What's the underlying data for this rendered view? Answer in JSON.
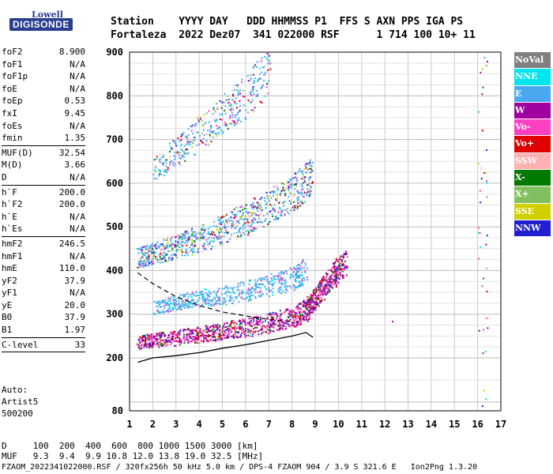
{
  "logo": {
    "top": "Lowell",
    "bottom": "DIGISONDE"
  },
  "header": {
    "line1": "Station    YYYY DAY   DDD HHMMSS P1  FFS S AXN PPS IGA PS",
    "line2": "Fortaleza  2022 Dez07  341 022000 RSF      1 714 100 10+ 11"
  },
  "params": {
    "group1": [
      {
        "label": "foF2",
        "value": "8.900"
      },
      {
        "label": "foF1",
        "value": "N/A"
      },
      {
        "label": "foF1p",
        "value": "N/A"
      },
      {
        "label": "foE",
        "value": "N/A"
      },
      {
        "label": "foEp",
        "value": "0.53"
      },
      {
        "label": "fxI",
        "value": "9.45"
      },
      {
        "label": "foEs",
        "value": "N/A"
      },
      {
        "label": "fmin",
        "value": "1.35"
      }
    ],
    "group2": [
      {
        "label": "MUF(D)",
        "value": "32.54"
      },
      {
        "label": "M(D)",
        "value": "3.66"
      },
      {
        "label": "D",
        "value": "N/A"
      }
    ],
    "group3": [
      {
        "label": "h`F",
        "value": "200.0"
      },
      {
        "label": "h`F2",
        "value": "200.0"
      },
      {
        "label": "h`E",
        "value": "N/A"
      },
      {
        "label": "h`Es",
        "value": "N/A"
      }
    ],
    "group4": [
      {
        "label": "hmF2",
        "value": "246.5"
      },
      {
        "label": "hmF1",
        "value": "N/A"
      },
      {
        "label": "hmE",
        "value": "110.0"
      },
      {
        "label": "yF2",
        "value": "37.9"
      },
      {
        "label": "yF1",
        "value": "N/A"
      },
      {
        "label": "yE",
        "value": "20.0"
      },
      {
        "label": "B0",
        "value": "37.9"
      },
      {
        "label": "B1",
        "value": "1.97"
      }
    ],
    "group5": [
      {
        "label": "C-level",
        "value": "33"
      }
    ]
  },
  "autoscaling": {
    "line1": "Auto:",
    "line2": "Artist5",
    "line3": "500200"
  },
  "footer": {
    "line1": "D     100  200  400  600  800 1000 1500 3000 [km]",
    "line2": "MUF   9.3  9.4  9.9 10.8 12.0 13.8 19.0 32.5 [MHz]",
    "line3": "FZAOM_2022341022000.RSF / 320fx256h 50 kHz 5.0 km / DPS-4 FZAOM 904 / 3.9 S 321.6 E   Ion2Png 1.3.20"
  },
  "legend": [
    {
      "label": "NoVal",
      "color": "#808080"
    },
    {
      "label": "NNE",
      "color": "#00e5ee"
    },
    {
      "label": "E",
      "color": "#4aa8f0"
    },
    {
      "label": "W",
      "color": "#a000a0"
    },
    {
      "label": "Vo-",
      "color": "#ff40c0"
    },
    {
      "label": "Vo+",
      "color": "#e00000"
    },
    {
      "label": "SSW",
      "color": "#ffb0b0"
    },
    {
      "label": "X-",
      "color": "#007a00"
    },
    {
      "label": "X+",
      "color": "#80c060"
    },
    {
      "label": "SSE",
      "color": "#d0d000"
    },
    {
      "label": "NNW",
      "color": "#2020d0"
    }
  ],
  "chart_data": {
    "type": "scatter",
    "title": "",
    "xlabel": "",
    "ylabel": "",
    "xlim": [
      1,
      17
    ],
    "ylim": [
      80,
      900
    ],
    "x_ticks": [
      1,
      2,
      3,
      4,
      5,
      6,
      7,
      8,
      9,
      10,
      11,
      12,
      13,
      14,
      15,
      16,
      17
    ],
    "y_ticks": [
      80,
      200,
      300,
      400,
      500,
      600,
      700,
      800,
      900
    ],
    "grid": true,
    "echo_traces": [
      {
        "name": "F2 first hop",
        "x": [
          1.35,
          2,
          3,
          4,
          5,
          6,
          7,
          8,
          8.6,
          8.9,
          9.3,
          9.8,
          10.3
        ],
        "y": [
          230,
          235,
          240,
          247,
          255,
          262,
          272,
          285,
          300,
          320,
          350,
          380,
          410
        ]
      },
      {
        "name": "F2 second hop",
        "x": [
          1.35,
          2,
          3,
          4,
          5,
          6,
          7,
          8,
          8.9
        ],
        "y": [
          420,
          430,
          445,
          460,
          480,
          505,
          530,
          560,
          600
        ]
      },
      {
        "name": "F2 third hop",
        "x": [
          2,
          3,
          4,
          5,
          6,
          7
        ],
        "y": [
          620,
          660,
          700,
          740,
          780,
          830
        ]
      },
      {
        "name": "spread F (E sector)",
        "x": [
          2,
          3,
          4,
          5,
          6,
          7,
          8,
          8.6
        ],
        "y": [
          310,
          320,
          330,
          335,
          345,
          355,
          370,
          390
        ]
      }
    ],
    "profile_true_height": {
      "x": [
        1.35,
        2,
        3,
        4,
        5,
        6,
        7,
        8,
        8.6,
        8.9
      ],
      "y": [
        190,
        200,
        205,
        212,
        222,
        230,
        240,
        250,
        258,
        247
      ]
    },
    "profile_dashed": {
      "x": [
        1.35,
        2,
        3,
        4,
        5,
        6,
        7,
        8
      ],
      "y": [
        395,
        370,
        340,
        320,
        305,
        296,
        288,
        283
      ]
    },
    "isolated_points": [
      {
        "x": 12.3,
        "y": 285
      },
      {
        "x": 16.4,
        "y": 270
      }
    ]
  }
}
